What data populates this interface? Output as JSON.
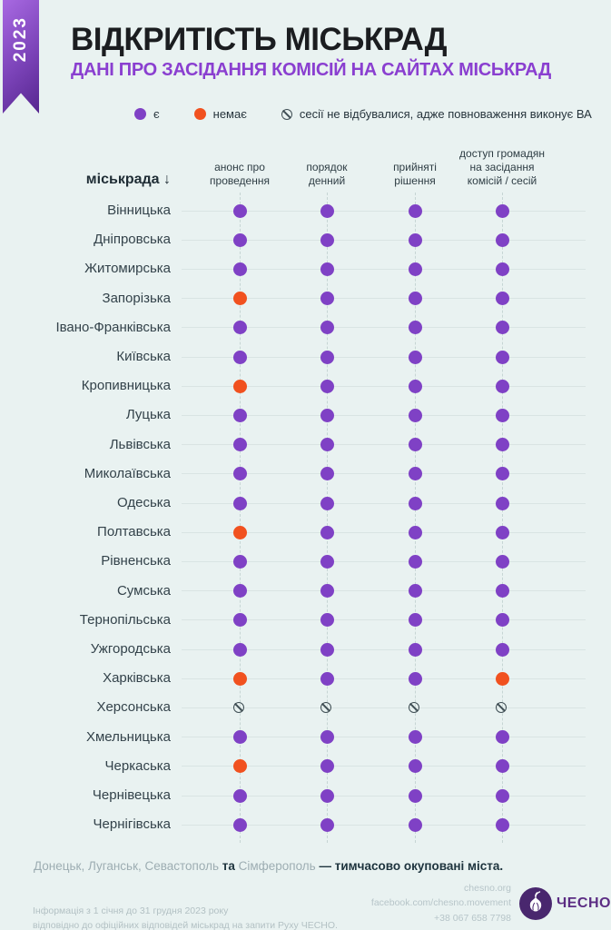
{
  "ribbon": {
    "year": "2023"
  },
  "header": {
    "title": "ВІДКРИТІСТЬ МІСЬКРАД",
    "subtitle": "ДАНІ ПРО ЗАСІДАННЯ КОМІСІЙ НА САЙТАХ МІСЬКРАД"
  },
  "legend": {
    "yes_label": "є",
    "no_label": "немає",
    "na_label": "сесії не відбувалися, адже повноваження виконує ВА"
  },
  "colors": {
    "yes_dot": "#7f41c5",
    "no_dot": "#f1511f",
    "na_stroke": "#3f4e54",
    "accent_purple": "#8a3fd0",
    "background": "#e9f2f1"
  },
  "table": {
    "row_header": "міськрада ↓",
    "columns_display": [
      "анонс про\nпроведення",
      "порядок\nденний",
      "прийняті\nрішення",
      "доступ громадян\nна засідання\nкомісій / сесій"
    ]
  },
  "chart_data": {
    "type": "table",
    "title": "ВІДКРИТІСТЬ МІСЬКРАД — ДАНІ ПРО ЗАСІДАННЯ КОМІСІЙ НА САЙТАХ МІСЬКРАД",
    "legend": {
      "yes": "є",
      "no": "немає",
      "na": "сесії не відбувалися, адже повноваження виконує ВА"
    },
    "columns": [
      "анонс про проведення",
      "порядок денний",
      "прийняті рішення",
      "доступ громадян на засідання комісій / сесій"
    ],
    "rows": [
      {
        "name": "Вінницька",
        "values": [
          "yes",
          "yes",
          "yes",
          "yes"
        ]
      },
      {
        "name": "Дніпровська",
        "values": [
          "yes",
          "yes",
          "yes",
          "yes"
        ]
      },
      {
        "name": "Житомирська",
        "values": [
          "yes",
          "yes",
          "yes",
          "yes"
        ]
      },
      {
        "name": "Запорізька",
        "values": [
          "no",
          "yes",
          "yes",
          "yes"
        ]
      },
      {
        "name": "Івано-Франківська",
        "values": [
          "yes",
          "yes",
          "yes",
          "yes"
        ]
      },
      {
        "name": "Київська",
        "values": [
          "yes",
          "yes",
          "yes",
          "yes"
        ]
      },
      {
        "name": "Кропивницька",
        "values": [
          "no",
          "yes",
          "yes",
          "yes"
        ]
      },
      {
        "name": "Луцька",
        "values": [
          "yes",
          "yes",
          "yes",
          "yes"
        ]
      },
      {
        "name": "Львівська",
        "values": [
          "yes",
          "yes",
          "yes",
          "yes"
        ]
      },
      {
        "name": "Миколаївська",
        "values": [
          "yes",
          "yes",
          "yes",
          "yes"
        ]
      },
      {
        "name": "Одеська",
        "values": [
          "yes",
          "yes",
          "yes",
          "yes"
        ]
      },
      {
        "name": "Полтавська",
        "values": [
          "no",
          "yes",
          "yes",
          "yes"
        ]
      },
      {
        "name": "Рівненська",
        "values": [
          "yes",
          "yes",
          "yes",
          "yes"
        ]
      },
      {
        "name": "Сумська",
        "values": [
          "yes",
          "yes",
          "yes",
          "yes"
        ]
      },
      {
        "name": "Тернопільська",
        "values": [
          "yes",
          "yes",
          "yes",
          "yes"
        ]
      },
      {
        "name": "Ужгородська",
        "values": [
          "yes",
          "yes",
          "yes",
          "yes"
        ]
      },
      {
        "name": "Харківська",
        "values": [
          "no",
          "yes",
          "yes",
          "no"
        ]
      },
      {
        "name": "Херсонська",
        "values": [
          "na",
          "na",
          "na",
          "na"
        ]
      },
      {
        "name": "Хмельницька",
        "values": [
          "yes",
          "yes",
          "yes",
          "yes"
        ]
      },
      {
        "name": "Черкаська",
        "values": [
          "no",
          "yes",
          "yes",
          "yes"
        ]
      },
      {
        "name": "Чернівецька",
        "values": [
          "yes",
          "yes",
          "yes",
          "yes"
        ]
      },
      {
        "name": "Чернігівська",
        "values": [
          "yes",
          "yes",
          "yes",
          "yes"
        ]
      }
    ]
  },
  "footnote": {
    "part1": "Донецьк, Луганськ, Севастополь ",
    "part2": "та ",
    "part3": "Сімферополь ",
    "part4": "— тимчасово окуповані міста."
  },
  "footer": {
    "info_line1": "Інформація з 1 січня до 31 грудня 2023 року",
    "info_line2": "відповідно до офіційних відповідей міськрад на запити Руху ЧЕСНО.",
    "website": "chesno.org",
    "facebook": "facebook.com/chesno.movement",
    "phone": "+38 067 658 7798",
    "logo_text": "ЧЕСНО"
  }
}
